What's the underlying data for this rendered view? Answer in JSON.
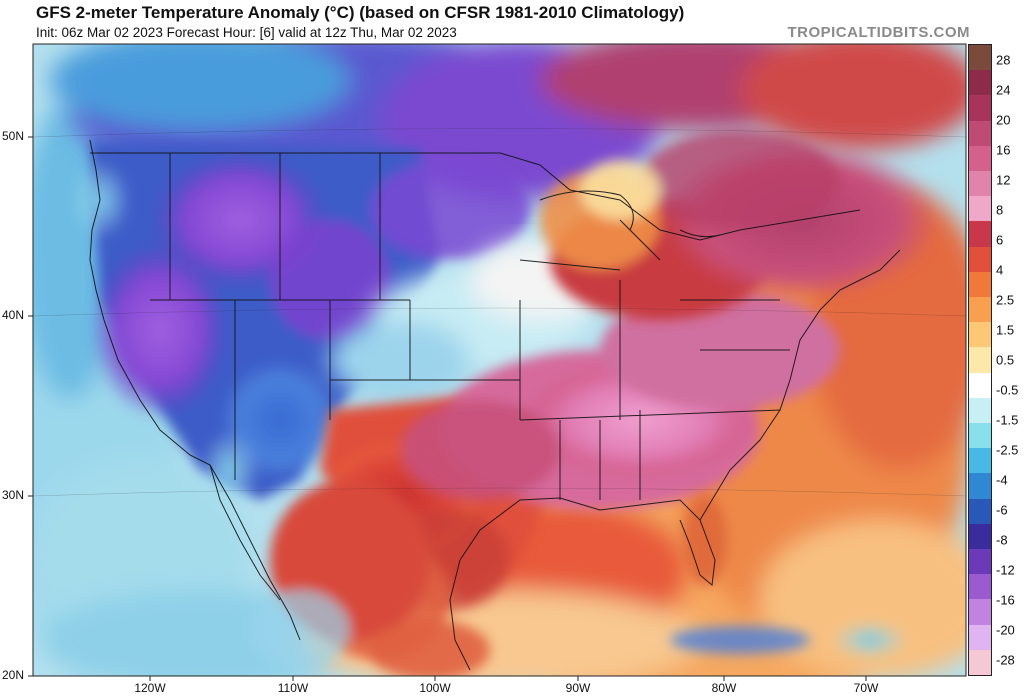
{
  "header": {
    "title": "GFS 2-meter Temperature Anomaly (°C) (based on CFSR 1981-2010 Climatology)",
    "subtitle": "Init: 06z Mar 02 2023   Forecast Hour: [6]   valid at 12z Thu, Mar 02 2023",
    "brand": "TROPICALTIDBITS.COM"
  },
  "axes": {
    "lat_labels": [
      "50N",
      "40N",
      "30N",
      "20N"
    ],
    "lon_labels": [
      "120W",
      "110W",
      "100W",
      "90W",
      "80W",
      "70W"
    ]
  },
  "colorbar": {
    "labels": [
      "28",
      "24",
      "20",
      "16",
      "12",
      "8",
      "6",
      "4",
      "2.5",
      "1.5",
      "0.5",
      "-0.5",
      "-1.5",
      "-2.5",
      "-4",
      "-6",
      "-8",
      "-12",
      "-16",
      "-20",
      "-28"
    ],
    "colors": [
      "#7a4a3a",
      "#8e2a4a",
      "#a8345c",
      "#bf4a74",
      "#d4608c",
      "#e084ac",
      "#f0a8c8",
      "#c8384a",
      "#e0503a",
      "#f0783a",
      "#f8a050",
      "#fcc878",
      "#fce8a8",
      "#ffffff",
      "#c8f0f4",
      "#88e0ec",
      "#48b8e4",
      "#3088d4",
      "#2858b8",
      "#3a2c9c",
      "#6a3ab8",
      "#9a5ad0",
      "#c084e0",
      "#e0b4f0",
      "#f4c8d4"
    ]
  },
  "map": {
    "region": "North America",
    "field": "2-meter temperature anomaly",
    "colors": {
      "ocean_neutral": "#a8dcec",
      "cold_blue": "#3a5ac8",
      "cold_purple": "#8a4ad8",
      "deep_purple": "#6a3ab8",
      "warm_orange": "#f08040",
      "warm_red": "#d03a30",
      "warm_pink": "#e080b0",
      "hot_magenta": "#c04878"
    }
  }
}
